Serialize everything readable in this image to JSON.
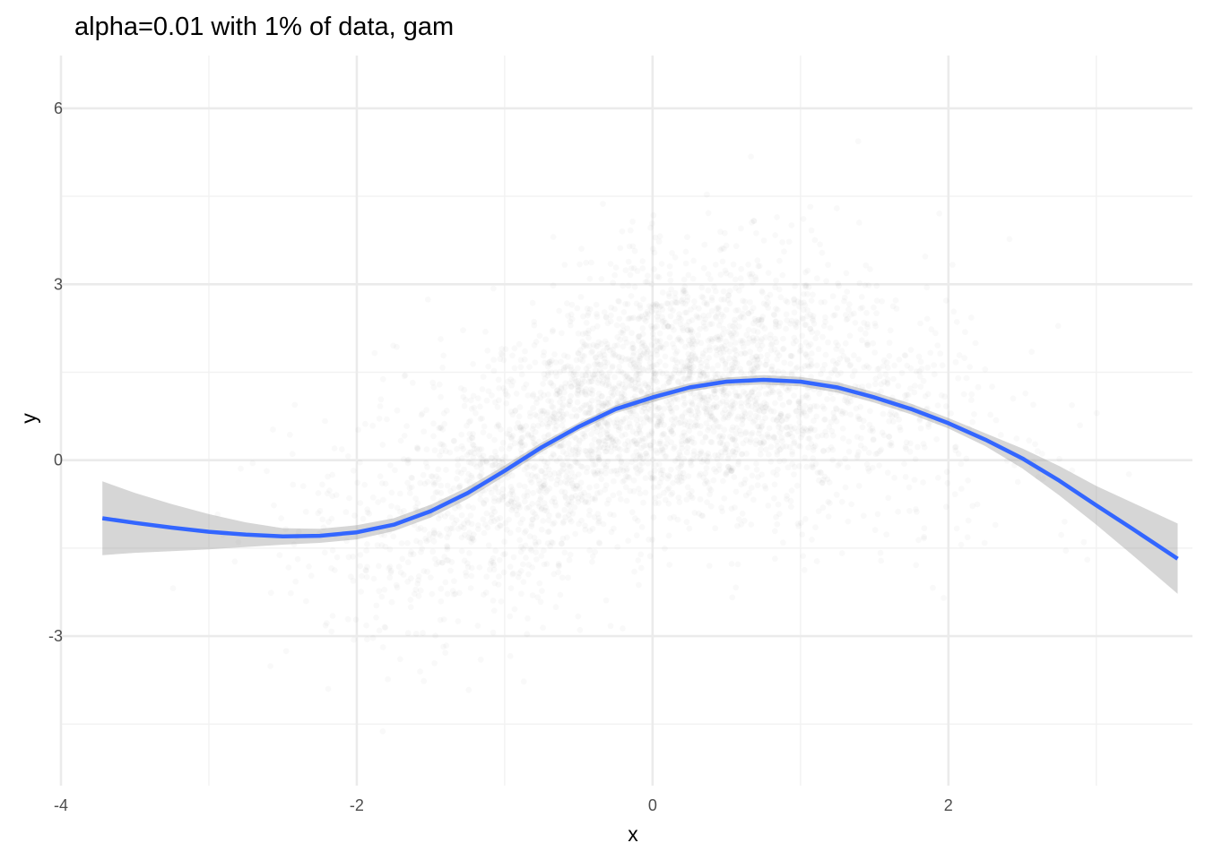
{
  "chart_data": {
    "type": "scatter",
    "title": "alpha=0.01 with 1% of data, gam",
    "xlabel": "x",
    "ylabel": "y",
    "xlim": [
      -4.0,
      3.65
    ],
    "ylim": [
      -5.55,
      6.9
    ],
    "x_ticks": [
      -4,
      -2,
      0,
      2
    ],
    "x_tick_labels": [
      "-4",
      "-2",
      "0",
      "2"
    ],
    "y_ticks": [
      -3,
      0,
      3,
      6
    ],
    "y_tick_labels": [
      "-3",
      "0",
      "3",
      "6"
    ],
    "grid": true,
    "legend": "none",
    "point_color": "#000000",
    "point_alpha": 0.01,
    "line_color": "#3366ff",
    "band_color": "#999999",
    "points": {
      "description_free": true,
      "n_points": 10000,
      "x_distribution": {
        "mean": 0.0,
        "sd": 1.0,
        "min": -3.75,
        "max": 3.6
      },
      "y_model": "smooth_curve_plus_noise",
      "y_noise_sd": 1.0
    },
    "series": [
      {
        "type": "gam_smooth",
        "x": [
          -3.72,
          -3.5,
          -3.25,
          -3.0,
          -2.75,
          -2.5,
          -2.25,
          -2.0,
          -1.75,
          -1.5,
          -1.25,
          -1.0,
          -0.75,
          -0.5,
          -0.25,
          0.0,
          0.25,
          0.5,
          0.75,
          1.0,
          1.25,
          1.5,
          1.75,
          2.0,
          2.25,
          2.5,
          2.75,
          3.0,
          3.25,
          3.55
        ],
        "y": [
          -0.99,
          -1.07,
          -1.15,
          -1.22,
          -1.27,
          -1.3,
          -1.29,
          -1.23,
          -1.1,
          -0.87,
          -0.56,
          -0.18,
          0.22,
          0.57,
          0.87,
          1.07,
          1.24,
          1.34,
          1.37,
          1.34,
          1.24,
          1.07,
          0.87,
          0.63,
          0.35,
          0.03,
          -0.35,
          -0.77,
          -1.18,
          -1.68
        ],
        "ymin": [
          -1.62,
          -1.58,
          -1.55,
          -1.52,
          -1.48,
          -1.44,
          -1.41,
          -1.35,
          -1.21,
          -0.98,
          -0.66,
          -0.27,
          0.14,
          0.5,
          0.8,
          0.99,
          1.17,
          1.27,
          1.29,
          1.26,
          1.15,
          0.98,
          0.78,
          0.54,
          0.24,
          -0.14,
          -0.6,
          -1.1,
          -1.63,
          -2.28
        ],
        "ymax": [
          -0.36,
          -0.56,
          -0.75,
          -0.92,
          -1.06,
          -1.16,
          -1.17,
          -1.11,
          -0.99,
          -0.76,
          -0.46,
          -0.09,
          0.3,
          0.64,
          0.94,
          1.15,
          1.31,
          1.41,
          1.45,
          1.42,
          1.33,
          1.16,
          0.96,
          0.72,
          0.46,
          0.2,
          -0.1,
          -0.44,
          -0.73,
          -1.08
        ]
      }
    ]
  }
}
